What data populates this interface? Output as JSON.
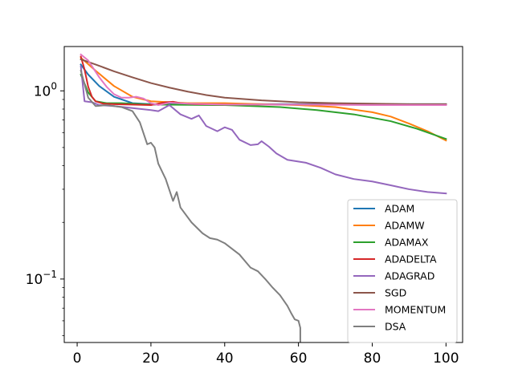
{
  "chart_data": {
    "type": "line",
    "title": "",
    "xlabel": "",
    "ylabel": "",
    "xlim": [
      -3.5,
      104.5
    ],
    "ylim": [
      0.046,
      1.72
    ],
    "yscale": "log",
    "grid": false,
    "legend_position": "lower-right",
    "x_ticks": [
      {
        "value": 0,
        "label": "0"
      },
      {
        "value": 20,
        "label": "20"
      },
      {
        "value": 40,
        "label": "40"
      },
      {
        "value": 60,
        "label": "60"
      },
      {
        "value": 80,
        "label": "80"
      },
      {
        "value": 100,
        "label": "100"
      }
    ],
    "y_ticks": [
      {
        "value": 1.0,
        "base": "10",
        "exp": "0"
      },
      {
        "value": 0.1,
        "base": "10",
        "exp": "−1"
      }
    ],
    "series": [
      {
        "name": "ADAM",
        "color": "#1f77b4",
        "points": [
          [
            1,
            1.38
          ],
          [
            3,
            1.22
          ],
          [
            6,
            1.06
          ],
          [
            10,
            0.93
          ],
          [
            15,
            0.86
          ],
          [
            20,
            0.85
          ],
          [
            40,
            0.85
          ],
          [
            60,
            0.85
          ],
          [
            80,
            0.85
          ],
          [
            100,
            0.85
          ]
        ]
      },
      {
        "name": "ADAMW",
        "color": "#ff7f0e",
        "points": [
          [
            1,
            1.5
          ],
          [
            5,
            1.28
          ],
          [
            10,
            1.06
          ],
          [
            15,
            0.93
          ],
          [
            20,
            0.88
          ],
          [
            30,
            0.86
          ],
          [
            40,
            0.86
          ],
          [
            50,
            0.85
          ],
          [
            60,
            0.84
          ],
          [
            70,
            0.82
          ],
          [
            80,
            0.77
          ],
          [
            85,
            0.73
          ],
          [
            90,
            0.67
          ],
          [
            95,
            0.61
          ],
          [
            100,
            0.545
          ]
        ]
      },
      {
        "name": "ADAMAX",
        "color": "#2ca02c",
        "points": [
          [
            1,
            1.22
          ],
          [
            3,
            0.98
          ],
          [
            5,
            0.88
          ],
          [
            8,
            0.86
          ],
          [
            12,
            0.86
          ],
          [
            20,
            0.845
          ],
          [
            40,
            0.84
          ],
          [
            55,
            0.82
          ],
          [
            65,
            0.79
          ],
          [
            75,
            0.75
          ],
          [
            85,
            0.69
          ],
          [
            92,
            0.63
          ],
          [
            100,
            0.555
          ]
        ]
      },
      {
        "name": "ADADELTA",
        "color": "#d62728",
        "points": [
          [
            1,
            1.52
          ],
          [
            2,
            1.3
          ],
          [
            3,
            1.05
          ],
          [
            4,
            0.93
          ],
          [
            5,
            0.88
          ],
          [
            7,
            0.855
          ],
          [
            10,
            0.85
          ],
          [
            20,
            0.84
          ],
          [
            24,
            0.87
          ],
          [
            26,
            0.875
          ],
          [
            28,
            0.86
          ],
          [
            32,
            0.85
          ],
          [
            40,
            0.845
          ],
          [
            60,
            0.845
          ],
          [
            80,
            0.845
          ],
          [
            100,
            0.845
          ]
        ]
      },
      {
        "name": "ADAGRAD",
        "color": "#9467bd",
        "points": [
          [
            1,
            1.35
          ],
          [
            2,
            0.88
          ],
          [
            4,
            0.87
          ],
          [
            6,
            0.84
          ],
          [
            10,
            0.83
          ],
          [
            15,
            0.81
          ],
          [
            20,
            0.79
          ],
          [
            22,
            0.78
          ],
          [
            25,
            0.84
          ],
          [
            28,
            0.75
          ],
          [
            31,
            0.71
          ],
          [
            33,
            0.74
          ],
          [
            35,
            0.65
          ],
          [
            38,
            0.61
          ],
          [
            40,
            0.64
          ],
          [
            42,
            0.62
          ],
          [
            44,
            0.55
          ],
          [
            47,
            0.515
          ],
          [
            49,
            0.52
          ],
          [
            50,
            0.54
          ],
          [
            52,
            0.505
          ],
          [
            54,
            0.465
          ],
          [
            57,
            0.43
          ],
          [
            62,
            0.415
          ],
          [
            66,
            0.39
          ],
          [
            70,
            0.36
          ],
          [
            75,
            0.34
          ],
          [
            80,
            0.33
          ],
          [
            85,
            0.315
          ],
          [
            90,
            0.3
          ],
          [
            95,
            0.29
          ],
          [
            100,
            0.285
          ]
        ]
      },
      {
        "name": "SGD",
        "color": "#8c564b",
        "points": [
          [
            1,
            1.47
          ],
          [
            5,
            1.38
          ],
          [
            10,
            1.27
          ],
          [
            15,
            1.18
          ],
          [
            20,
            1.1
          ],
          [
            25,
            1.04
          ],
          [
            30,
            0.99
          ],
          [
            35,
            0.95
          ],
          [
            40,
            0.92
          ],
          [
            50,
            0.89
          ],
          [
            60,
            0.87
          ],
          [
            70,
            0.86
          ],
          [
            80,
            0.855
          ],
          [
            90,
            0.85
          ],
          [
            100,
            0.85
          ]
        ]
      },
      {
        "name": "MOMENTUM",
        "color": "#e377c2",
        "points": [
          [
            1,
            1.56
          ],
          [
            3,
            1.45
          ],
          [
            6,
            1.18
          ],
          [
            8,
            1.05
          ],
          [
            10,
            0.96
          ],
          [
            12,
            0.92
          ],
          [
            14,
            0.92
          ],
          [
            16,
            0.93
          ],
          [
            18,
            0.91
          ],
          [
            20,
            0.86
          ],
          [
            22,
            0.84
          ],
          [
            25,
            0.865
          ],
          [
            30,
            0.855
          ],
          [
            40,
            0.845
          ],
          [
            60,
            0.845
          ],
          [
            80,
            0.84
          ],
          [
            100,
            0.84
          ]
        ]
      },
      {
        "name": "DSA",
        "color": "#7f7f7f",
        "points": [
          [
            1,
            1.28
          ],
          [
            3,
            0.92
          ],
          [
            5,
            0.83
          ],
          [
            8,
            0.84
          ],
          [
            12,
            0.82
          ],
          [
            15,
            0.78
          ],
          [
            17,
            0.68
          ],
          [
            19,
            0.52
          ],
          [
            20,
            0.53
          ],
          [
            21,
            0.5
          ],
          [
            22,
            0.41
          ],
          [
            24,
            0.34
          ],
          [
            26,
            0.26
          ],
          [
            27,
            0.29
          ],
          [
            28,
            0.24
          ],
          [
            31,
            0.2
          ],
          [
            34,
            0.175
          ],
          [
            36,
            0.165
          ],
          [
            38,
            0.162
          ],
          [
            40,
            0.155
          ],
          [
            44,
            0.135
          ],
          [
            47,
            0.115
          ],
          [
            49,
            0.11
          ],
          [
            51,
            0.1
          ],
          [
            53,
            0.09
          ],
          [
            55,
            0.082
          ],
          [
            57,
            0.072
          ],
          [
            58,
            0.066
          ],
          [
            59,
            0.061
          ],
          [
            60,
            0.06
          ],
          [
            60.5,
            0.055
          ],
          [
            60.5,
            0.046
          ]
        ]
      }
    ]
  }
}
